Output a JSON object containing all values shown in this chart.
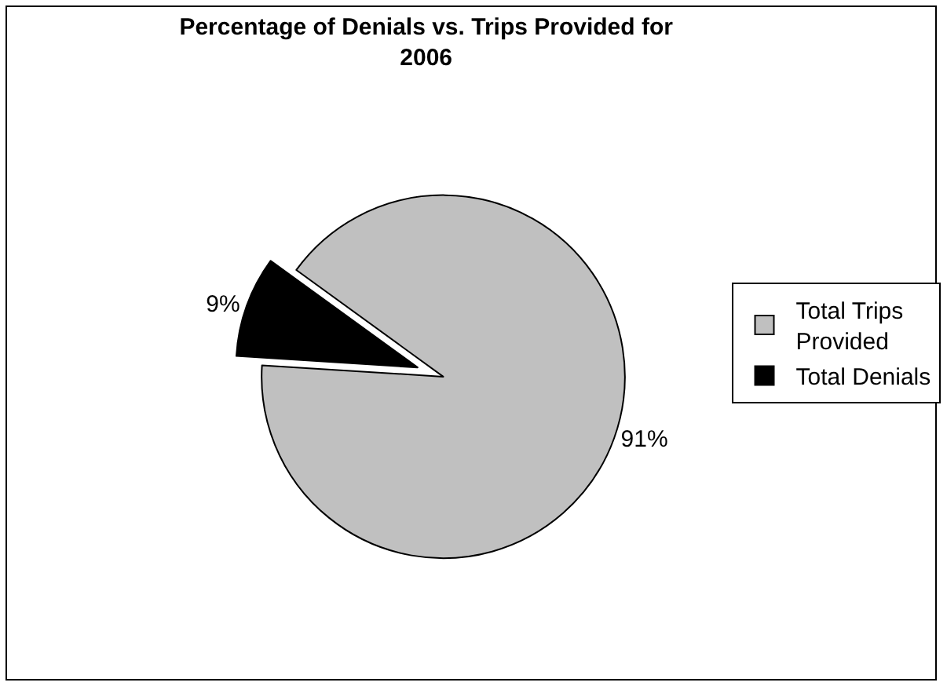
{
  "chart_data": {
    "type": "pie",
    "title": "Percentage of Denials vs. Trips Provided for 2006",
    "categories": [
      "Total Trips Provided",
      "Total Denials"
    ],
    "values": [
      91,
      9
    ],
    "colors": [
      "#c0c0c0",
      "#000000"
    ],
    "value_labels": [
      "91%",
      "9%"
    ],
    "legend": "right"
  }
}
